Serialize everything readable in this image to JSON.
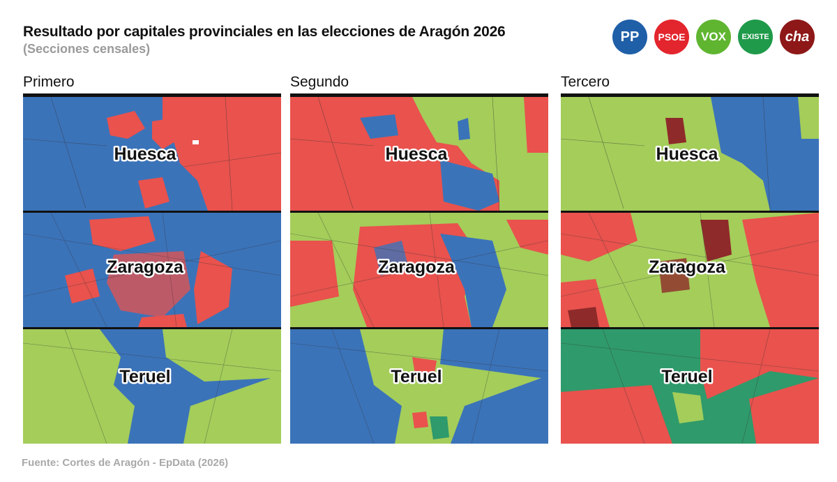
{
  "header": {
    "title": "Resultado por capitales provinciales en las elecciones de Aragón 2026",
    "subtitle": "(Secciones censales)"
  },
  "parties": [
    {
      "key": "pp",
      "label": "PP",
      "color": "#1f5fa8"
    },
    {
      "key": "psoe",
      "label": "PSOE",
      "color": "#e3252d"
    },
    {
      "key": "vox",
      "label": "VOX",
      "color": "#5fb530"
    },
    {
      "key": "existe",
      "label": "EXISTE",
      "color": "#1f9a4a"
    },
    {
      "key": "cha",
      "label": "cha",
      "color": "#8e1818"
    }
  ],
  "map_colors": {
    "pp": "#3b73b9",
    "psoe": "#e9524d",
    "vox": "#a4cd5a",
    "existe": "#2f9a6b",
    "cha": "#8f2a2a"
  },
  "columns": [
    {
      "label": "Primero"
    },
    {
      "label": "Segundo"
    },
    {
      "label": "Tercero"
    }
  ],
  "cities": [
    {
      "name": "Huesca"
    },
    {
      "name": "Zaragoza"
    },
    {
      "name": "Teruel"
    }
  ],
  "footer": {
    "source": "Fuente: Cortes de Aragón - EpData (2026)"
  }
}
